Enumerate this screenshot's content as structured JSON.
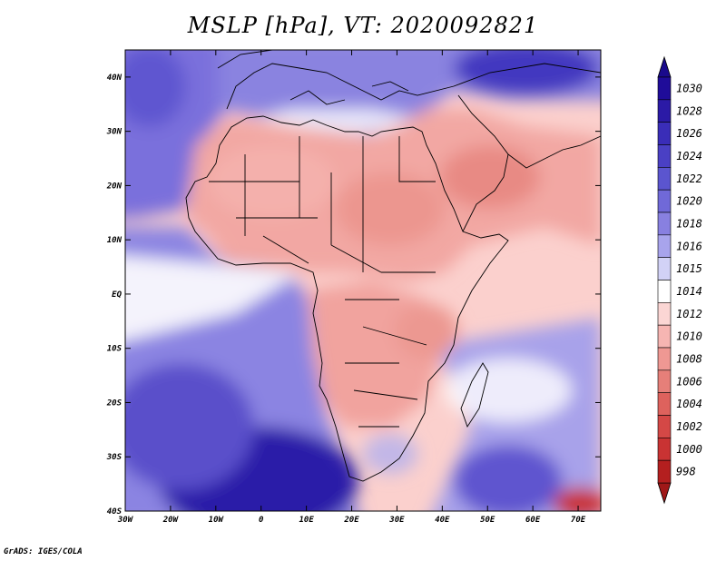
{
  "title": "MSLP [hPa], VT: 2020092821",
  "credit": "GrADS: IGES/COLA",
  "map": {
    "lon_range": [
      -30,
      75
    ],
    "lat_range": [
      -40,
      45
    ],
    "lon_ticks": [
      {
        "value": -30,
        "label": "30W"
      },
      {
        "value": -20,
        "label": "20W"
      },
      {
        "value": -10,
        "label": "10W"
      },
      {
        "value": 0,
        "label": "0"
      },
      {
        "value": 10,
        "label": "10E"
      },
      {
        "value": 20,
        "label": "20E"
      },
      {
        "value": 30,
        "label": "30E"
      },
      {
        "value": 40,
        "label": "40E"
      },
      {
        "value": 50,
        "label": "50E"
      },
      {
        "value": 60,
        "label": "60E"
      },
      {
        "value": 70,
        "label": "70E"
      }
    ],
    "lat_ticks": [
      {
        "value": 40,
        "label": "40N"
      },
      {
        "value": 30,
        "label": "30N"
      },
      {
        "value": 20,
        "label": "20N"
      },
      {
        "value": 10,
        "label": "10N"
      },
      {
        "value": 0,
        "label": "EQ"
      },
      {
        "value": -10,
        "label": "10S"
      },
      {
        "value": -20,
        "label": "20S"
      },
      {
        "value": -30,
        "label": "30S"
      },
      {
        "value": -40,
        "label": "40S"
      }
    ]
  },
  "colorbar": {
    "levels": [
      {
        "label": "1030",
        "color": "#1f0c99"
      },
      {
        "label": "1028",
        "color": "#2b1aa6"
      },
      {
        "label": "1026",
        "color": "#3a2db8"
      },
      {
        "label": "1024",
        "color": "#4a40c4"
      },
      {
        "label": "1022",
        "color": "#5b55cf"
      },
      {
        "label": "1020",
        "color": "#7069d8"
      },
      {
        "label": "1018",
        "color": "#8880e0"
      },
      {
        "label": "1016",
        "color": "#a8a4ec"
      },
      {
        "label": "1015",
        "color": "#d2d2f6"
      },
      {
        "label": "1014",
        "color": "#ffffff"
      },
      {
        "label": "1012",
        "color": "#fbd6d4"
      },
      {
        "label": "1010",
        "color": "#f6b5b2"
      },
      {
        "label": "1008",
        "color": "#ef9893"
      },
      {
        "label": "1006",
        "color": "#e67f79"
      },
      {
        "label": "1004",
        "color": "#de625d"
      },
      {
        "label": "1002",
        "color": "#d44846"
      },
      {
        "label": "1000",
        "color": "#c93333"
      },
      {
        "label": "998",
        "color": "#b41f1f"
      }
    ],
    "top_arrow_color": "#1a0a8c",
    "bottom_arrow_color": "#a01818"
  }
}
